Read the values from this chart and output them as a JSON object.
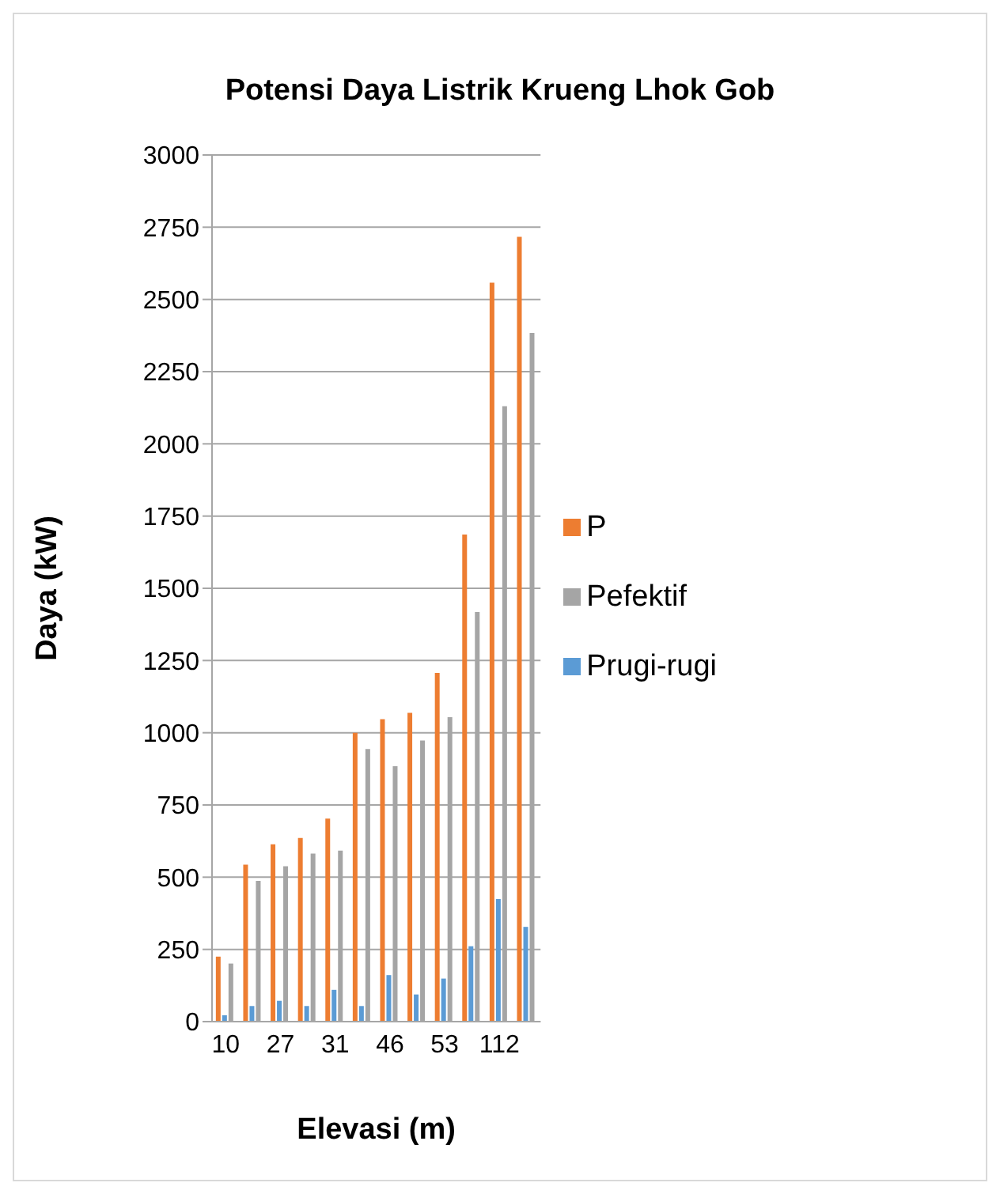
{
  "chart_data": {
    "type": "bar",
    "title": "Potensi Daya Listrik Krueng Lhok Gob",
    "xlabel": "Elevasi (m)",
    "ylabel": "Daya (kW)",
    "categories": [
      "10",
      null,
      "27",
      null,
      "31",
      null,
      "46",
      null,
      "53",
      null,
      "112",
      null
    ],
    "series": [
      {
        "name": "P",
        "color": "#ed7d31",
        "values": [
          225,
          543,
          614,
          636,
          703,
          1000,
          1047,
          1069,
          1207,
          1686,
          2558,
          2717
        ]
      },
      {
        "name": "Prugi-rugi",
        "color": "#5b9bd5",
        "values": [
          22,
          54,
          72,
          54,
          110,
          54,
          161,
          94,
          149,
          261,
          424,
          328
        ]
      },
      {
        "name": "Pefektif",
        "color": "#a5a5a5",
        "values": [
          201,
          487,
          538,
          582,
          592,
          944,
          884,
          973,
          1054,
          1418,
          2130,
          2384
        ]
      }
    ],
    "ylim": [
      0,
      3000
    ],
    "yticks": [
      0,
      250,
      500,
      750,
      1000,
      1250,
      1500,
      1750,
      2000,
      2250,
      2500,
      2750,
      3000
    ],
    "grid": "y",
    "legend": "right"
  }
}
